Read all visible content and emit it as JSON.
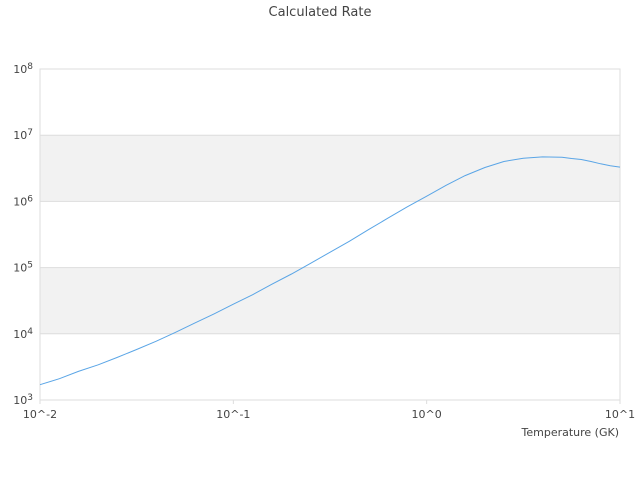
{
  "chart_data": {
    "type": "line",
    "title": "Calculated Rate",
    "xlabel": "Temperature (GK)",
    "ylabel": "",
    "x_scale": "log",
    "y_scale": "log",
    "xlim": [
      0.01,
      10
    ],
    "ylim": [
      1000,
      100000000
    ],
    "x_ticks": [
      {
        "value": 0.01,
        "label": "10^-2"
      },
      {
        "value": 0.1,
        "label": "10^-1"
      },
      {
        "value": 1,
        "label": "10^0"
      },
      {
        "value": 10,
        "label": "10^1"
      }
    ],
    "y_ticks": [
      {
        "value": 1000,
        "base": "10",
        "exp": "3"
      },
      {
        "value": 10000,
        "base": "10",
        "exp": "4"
      },
      {
        "value": 100000,
        "base": "10",
        "exp": "5"
      },
      {
        "value": 1000000,
        "base": "10",
        "exp": "6"
      },
      {
        "value": 10000000,
        "base": "10",
        "exp": "7"
      },
      {
        "value": 100000000,
        "base": "10",
        "exp": "8"
      }
    ],
    "alternating_bands": true,
    "legend": "none",
    "colors": {
      "line": "#5aa5e6",
      "band": "#f2f2f2",
      "grid": "#dddddd",
      "text": "#444444"
    },
    "series": [
      {
        "x": [
          0.01,
          0.0126,
          0.0158,
          0.02,
          0.0251,
          0.0316,
          0.0398,
          0.0501,
          0.0631,
          0.0794,
          0.1,
          0.126,
          0.158,
          0.2,
          0.251,
          0.316,
          0.398,
          0.501,
          0.631,
          0.794,
          1.0,
          1.26,
          1.58,
          2.0,
          2.51,
          3.16,
          3.98,
          5.01,
          5.62,
          6.31,
          7.08,
          7.94,
          8.91,
          10.0
        ],
        "y": [
          1700,
          2100,
          2700,
          3400,
          4400,
          5800,
          7700,
          10500,
          14500,
          20000,
          28000,
          39000,
          56000,
          80000,
          116000,
          170000,
          250000,
          375000,
          560000,
          830000,
          1200000,
          1750000,
          2450000,
          3250000,
          4000000,
          4500000,
          4700000,
          4650000,
          4450000,
          4300000,
          4000000,
          3700000,
          3450000,
          3300000
        ]
      }
    ]
  }
}
